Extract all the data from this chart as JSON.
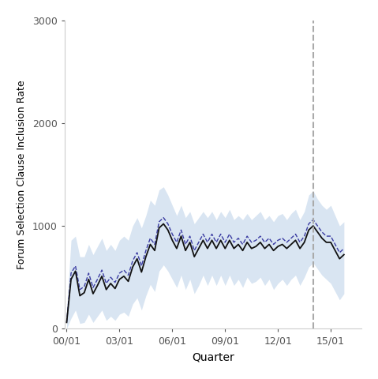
{
  "title": "",
  "xlabel": "Quarter",
  "ylabel": "Forum Selection Clause Inclusion Rate",
  "xlim_min": -0.5,
  "xlim_max": 67,
  "ylim": [
    0,
    3000
  ],
  "yticks": [
    0,
    1000,
    2000,
    3000
  ],
  "xtick_positions": [
    0,
    12,
    24,
    36,
    48,
    60
  ],
  "xtick_labels": [
    "00/01",
    "03/01",
    "06/01",
    "09/01",
    "12/01",
    "15/01"
  ],
  "vline_x": 56,
  "line_color": "#111111",
  "dashed_color": "#2a2a9a",
  "band_color": "#bad0e8",
  "vline_color": "#aaaaaa",
  "bg_color": "#ffffff",
  "solid_values": [
    60,
    480,
    560,
    320,
    350,
    480,
    340,
    420,
    510,
    380,
    440,
    390,
    480,
    510,
    460,
    600,
    680,
    550,
    700,
    820,
    760,
    980,
    1020,
    960,
    860,
    780,
    900,
    760,
    840,
    700,
    780,
    860,
    780,
    860,
    780,
    860,
    780,
    860,
    780,
    820,
    760,
    840,
    780,
    800,
    840,
    780,
    820,
    760,
    800,
    820,
    780,
    820,
    860,
    780,
    840,
    960,
    1000,
    940,
    880,
    840,
    840,
    760,
    680,
    720
  ],
  "dashed_values": [
    60,
    540,
    610,
    380,
    410,
    540,
    400,
    480,
    570,
    440,
    500,
    450,
    540,
    570,
    520,
    660,
    740,
    610,
    760,
    880,
    820,
    1040,
    1080,
    1020,
    920,
    840,
    960,
    820,
    900,
    760,
    840,
    920,
    840,
    920,
    840,
    920,
    840,
    920,
    840,
    880,
    820,
    900,
    840,
    860,
    900,
    840,
    880,
    820,
    860,
    880,
    840,
    880,
    920,
    840,
    900,
    1020,
    1060,
    1000,
    940,
    900,
    900,
    820,
    740,
    780
  ],
  "upper_band": [
    180,
    860,
    900,
    700,
    700,
    820,
    720,
    800,
    880,
    760,
    820,
    760,
    860,
    900,
    860,
    1000,
    1080,
    980,
    1100,
    1250,
    1200,
    1350,
    1380,
    1300,
    1200,
    1100,
    1200,
    1080,
    1140,
    1020,
    1080,
    1140,
    1080,
    1140,
    1060,
    1140,
    1080,
    1160,
    1060,
    1100,
    1060,
    1120,
    1060,
    1100,
    1140,
    1060,
    1100,
    1040,
    1100,
    1120,
    1060,
    1120,
    1160,
    1060,
    1140,
    1300,
    1340,
    1260,
    1200,
    1160,
    1200,
    1100,
    1000,
    1040
  ],
  "lower_band": [
    0,
    100,
    180,
    50,
    60,
    140,
    60,
    120,
    180,
    80,
    120,
    80,
    140,
    160,
    120,
    240,
    300,
    180,
    320,
    430,
    360,
    560,
    620,
    560,
    480,
    400,
    520,
    380,
    480,
    340,
    420,
    520,
    420,
    520,
    420,
    520,
    420,
    520,
    420,
    480,
    400,
    500,
    440,
    460,
    500,
    420,
    480,
    380,
    440,
    480,
    420,
    480,
    520,
    420,
    500,
    600,
    640,
    580,
    520,
    480,
    440,
    360,
    280,
    340
  ]
}
